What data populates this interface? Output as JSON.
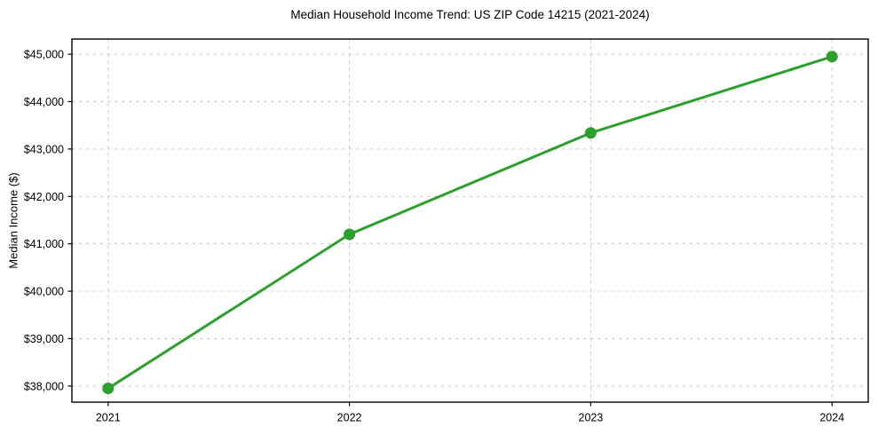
{
  "figure": {
    "title": "Median Household Income Trend: US ZIP Code 14215 (2021-2024)"
  },
  "chart_data": {
    "type": "line",
    "title": "Median Household Income Trend: US ZIP Code 14215 (2021-2024)",
    "xlabel": "",
    "ylabel": "Median Income ($)",
    "x": [
      2021,
      2022,
      2023,
      2024
    ],
    "xtick_labels": [
      "2021",
      "2022",
      "2023",
      "2024"
    ],
    "series": [
      {
        "name": "Median Household Income",
        "values": [
          37950,
          41200,
          43340,
          44950
        ],
        "color": "#2ca02c",
        "marker": "circle"
      }
    ],
    "yticks": [
      38000,
      39000,
      40000,
      41000,
      42000,
      43000,
      44000,
      45000
    ],
    "ytick_labels": [
      "$38,000",
      "$39,000",
      "$40,000",
      "$41,000",
      "$42,000",
      "$43,000",
      "$44,000",
      "$45,000"
    ],
    "xlim": [
      2020.85,
      2024.15
    ],
    "ylim": [
      37660,
      45320
    ],
    "grid": true,
    "grid_style": "dashed",
    "legend": "none"
  },
  "colors": {
    "line": "#2ca02c",
    "grid": "#c9c9c9",
    "axis": "#000000",
    "text": "#000000",
    "background": "#ffffff"
  }
}
